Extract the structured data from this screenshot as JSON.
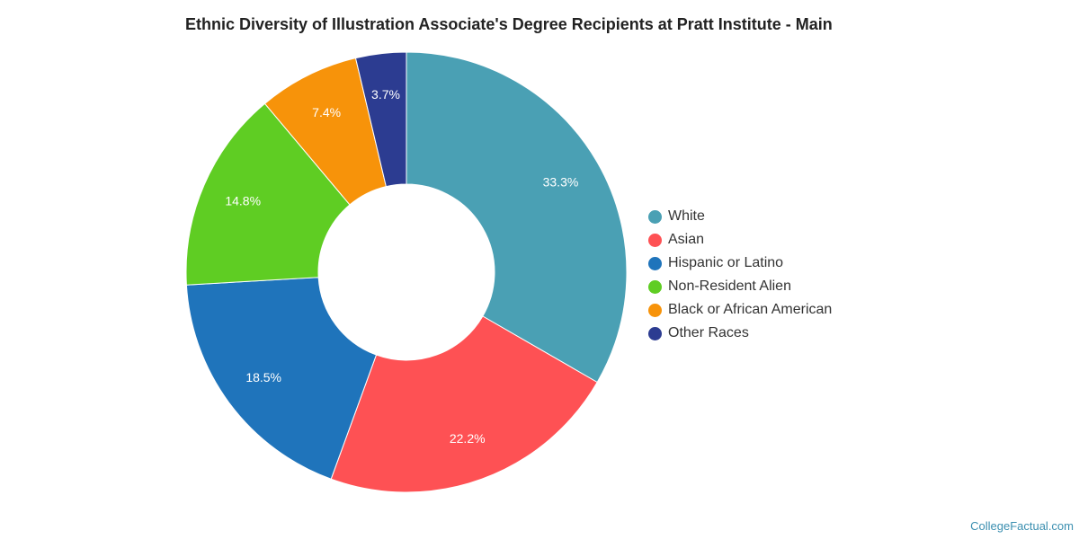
{
  "chart_data": {
    "type": "pie",
    "title": "Ethnic Diversity of Illustration Associate's Degree Recipients at Pratt Institute - Main",
    "legend_position": "right",
    "donut": true,
    "categories": [
      "White",
      "Asian",
      "Hispanic or Latino",
      "Non-Resident Alien",
      "Black or African American",
      "Other Races"
    ],
    "values": [
      33.3,
      22.2,
      18.5,
      14.8,
      7.4,
      3.7
    ],
    "labels": [
      "33.3%",
      "22.2%",
      "18.5%",
      "14.8%",
      "7.4%",
      "3.7%"
    ],
    "colors": [
      "#4aa0b4",
      "#fe5154",
      "#1f74bb",
      "#5fcd23",
      "#f7930a",
      "#2c3c91"
    ]
  },
  "watermark": "CollegeFactual.com"
}
